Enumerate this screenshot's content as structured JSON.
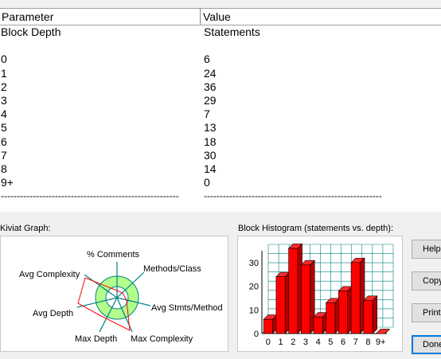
{
  "table": {
    "header_parameter": "Parameter",
    "header_value": "Value",
    "rows": [
      {
        "param": "Block Depth",
        "value": "Statements"
      },
      {
        "param": "",
        "value": ""
      },
      {
        "param": "0",
        "value": "6"
      },
      {
        "param": "1",
        "value": "24"
      },
      {
        "param": "2",
        "value": "36"
      },
      {
        "param": "3",
        "value": "29"
      },
      {
        "param": "4",
        "value": "7"
      },
      {
        "param": "5",
        "value": "13"
      },
      {
        "param": "6",
        "value": "18"
      },
      {
        "param": "7",
        "value": "30"
      },
      {
        "param": "8",
        "value": "14"
      },
      {
        "param": "9+",
        "value": "0"
      }
    ],
    "separator": "--------------------------------------------------------"
  },
  "kiviat": {
    "label": "Kiviat Graph:",
    "axes": [
      "% Comments",
      "Methods/Class",
      "Avg Stmts/Method",
      "Max Complexity",
      "Max Depth",
      "Avg Depth",
      "Avg Complexity"
    ],
    "colors": {
      "outer_ring": "#b3ff8c",
      "inner_ring": "#ffffff",
      "axis": "#008080",
      "polygon": "#ff0000"
    }
  },
  "histogram": {
    "label": "Block Histogram (statements vs. depth):"
  },
  "buttons": {
    "help": "Help",
    "copy": "Copy",
    "print": "Print",
    "done": "Done"
  },
  "chart_data": {
    "type": "bar",
    "categories": [
      "0",
      "1",
      "2",
      "3",
      "4",
      "5",
      "6",
      "7",
      "8",
      "9+"
    ],
    "values": [
      6,
      24,
      36,
      29,
      7,
      13,
      18,
      30,
      14,
      0
    ],
    "ylim": [
      0,
      35
    ],
    "yticks": [
      "0",
      "10",
      "20",
      "30"
    ],
    "grid": true,
    "bar_color": "#ff0000"
  }
}
